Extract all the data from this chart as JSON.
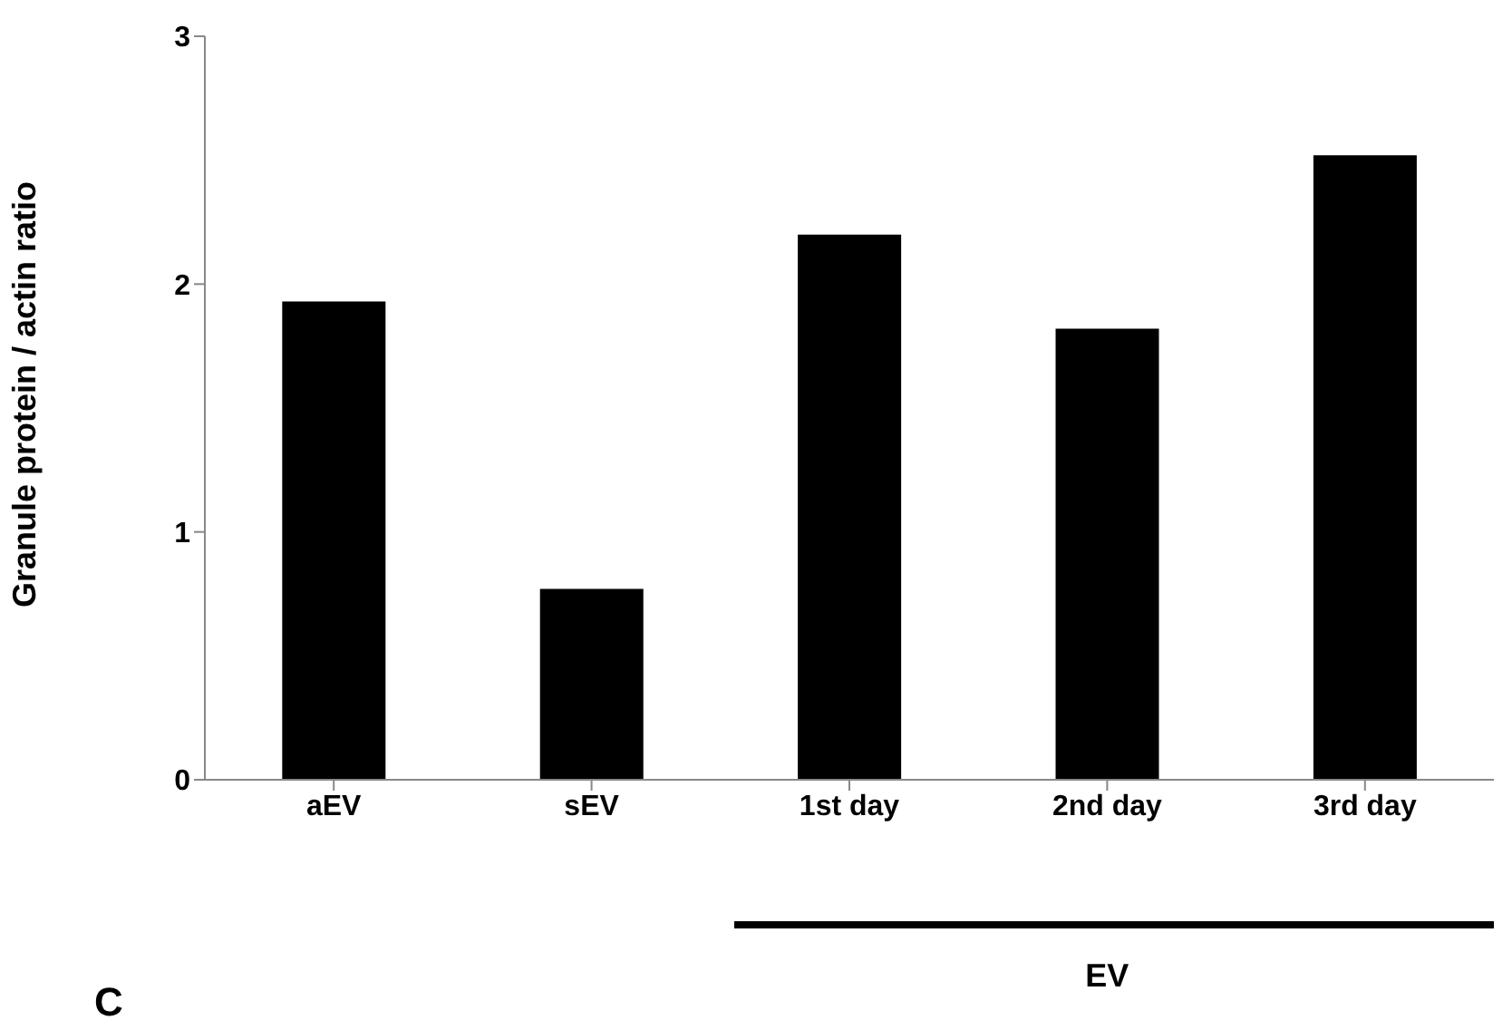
{
  "chart_data": {
    "type": "bar",
    "ylabel": "Granule protein / actin ratio",
    "categories": [
      "aEV",
      "sEV",
      "1st day",
      "2nd day",
      "3rd day"
    ],
    "values": [
      1.93,
      0.77,
      2.2,
      1.82,
      2.52
    ],
    "color": "#000000",
    "ylim": [
      0,
      3
    ],
    "yticks": [
      0,
      1,
      2,
      3
    ],
    "annotations": [
      "EV",
      "C"
    ]
  }
}
